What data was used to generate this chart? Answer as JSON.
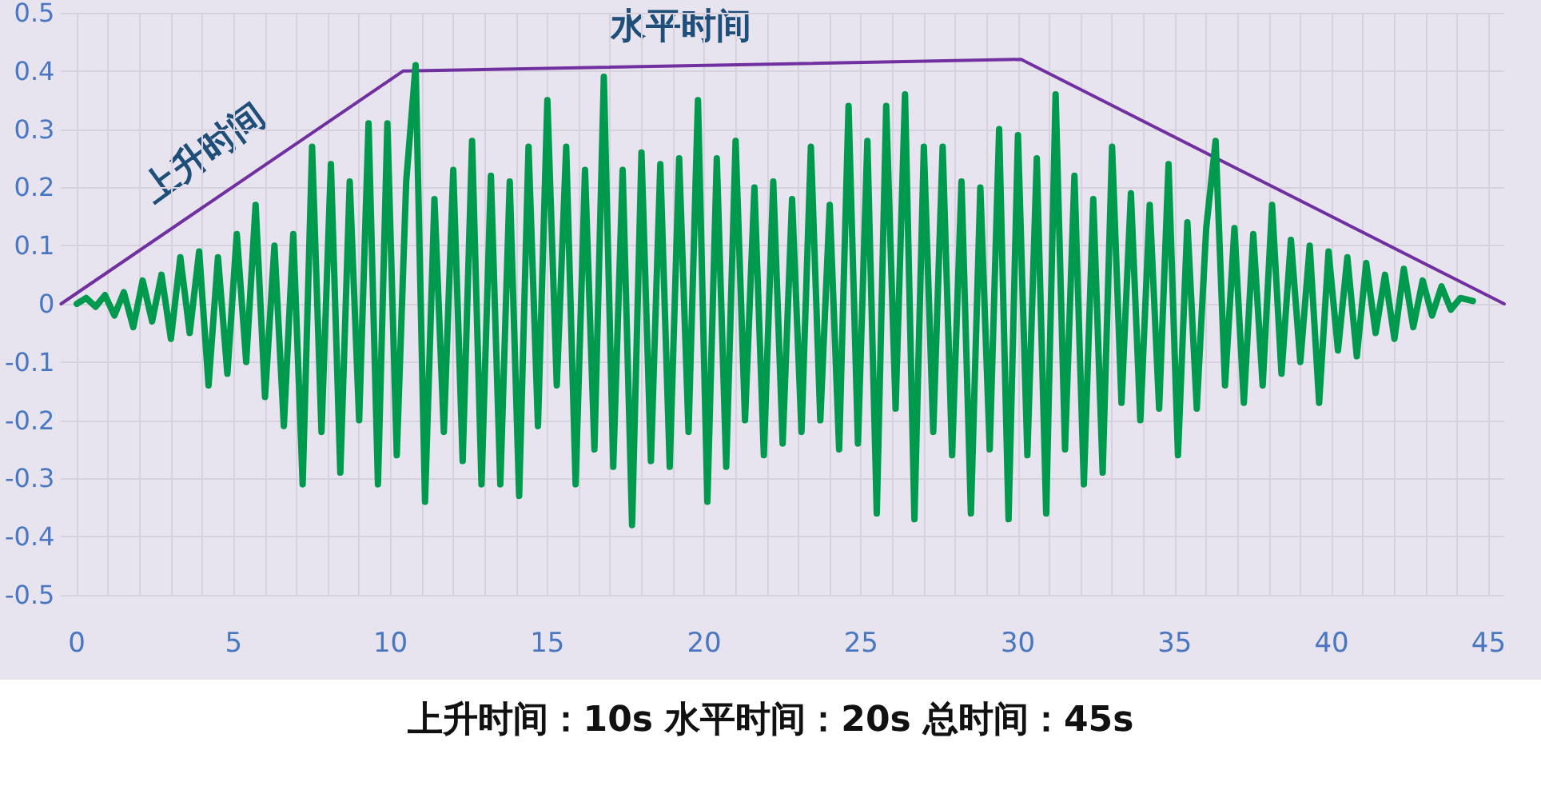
{
  "chart_data": {
    "type": "line",
    "annotations": [
      "上升时间",
      "水平时间",
      "上升时间：10s 水平时间：20s 总时间：45s"
    ],
    "xlim": [
      -0.5,
      45.5
    ],
    "xticks": [
      0,
      {
        "value": 1,
        "label": null
      },
      {
        "value": 2,
        "label": null
      },
      {
        "value": 3,
        "label": null
      },
      {
        "value": 4,
        "label": null
      },
      5,
      {
        "value": 6,
        "label": null
      },
      {
        "value": 7,
        "label": null
      },
      {
        "value": 8,
        "label": null
      },
      {
        "value": 9,
        "label": null
      },
      10,
      {
        "value": 11,
        "label": null
      },
      {
        "value": 12,
        "label": null
      },
      {
        "value": 13,
        "label": null
      },
      {
        "value": 14,
        "label": null
      },
      15,
      {
        "value": 16,
        "label": null
      },
      {
        "value": 17,
        "label": null
      },
      {
        "value": 18,
        "label": null
      },
      {
        "value": 19,
        "label": null
      },
      20,
      {
        "value": 21,
        "label": null
      },
      {
        "value": 22,
        "label": null
      },
      {
        "value": 23,
        "label": null
      },
      {
        "value": 24,
        "label": null
      },
      25,
      {
        "value": 26,
        "label": null
      },
      {
        "value": 27,
        "label": null
      },
      {
        "value": 28,
        "label": null
      },
      {
        "value": 29,
        "label": null
      },
      30,
      {
        "value": 31,
        "label": null
      },
      {
        "value": 32,
        "label": null
      },
      {
        "value": 33,
        "label": null
      },
      {
        "value": 34,
        "label": null
      },
      35,
      {
        "value": 36,
        "label": null
      },
      {
        "value": 37,
        "label": null
      },
      {
        "value": 38,
        "label": null
      },
      {
        "value": 39,
        "label": null
      },
      40,
      {
        "value": 41,
        "label": null
      },
      {
        "value": 42,
        "label": null
      },
      {
        "value": 43,
        "label": null
      },
      {
        "value": 44,
        "label": null
      },
      45
    ],
    "ylim": [
      -0.5,
      0.5
    ],
    "yticks": [
      -0.5,
      -0.4,
      -0.3,
      -0.2,
      -0.1,
      0,
      0.1,
      0.2,
      0.3,
      0.4,
      0.5
    ],
    "grid": true,
    "marker": "none",
    "line_style": "solid",
    "series": [
      {
        "color": "#009a4e",
        "x": [
          0,
          0.3,
          0.6,
          0.9,
          1.2,
          1.5,
          1.8,
          2.1,
          2.4,
          2.7,
          3.0,
          3.3,
          3.6,
          3.9,
          4.2,
          4.5,
          4.8,
          5.1,
          5.4,
          5.7,
          6.0,
          6.3,
          6.6,
          6.9,
          7.2,
          7.5,
          7.8,
          8.1,
          8.4,
          8.7,
          9.0,
          9.3,
          9.6,
          9.9,
          10.2,
          10.5,
          10.8,
          11.1,
          11.4,
          11.7,
          12.0,
          12.3,
          12.6,
          12.9,
          13.2,
          13.5,
          13.8,
          14.1,
          14.4,
          14.7,
          15.0,
          15.3,
          15.6,
          15.9,
          16.2,
          16.5,
          16.8,
          17.1,
          17.4,
          17.7,
          18.0,
          18.3,
          18.6,
          18.9,
          19.2,
          19.5,
          19.8,
          20.1,
          20.4,
          20.7,
          21.0,
          21.3,
          21.6,
          21.9,
          22.2,
          22.5,
          22.8,
          23.1,
          23.4,
          23.7,
          24.0,
          24.3,
          24.6,
          24.9,
          25.2,
          25.5,
          25.8,
          26.1,
          26.4,
          26.7,
          27.0,
          27.3,
          27.6,
          27.9,
          28.2,
          28.5,
          28.8,
          29.1,
          29.4,
          29.7,
          30.0,
          30.3,
          30.6,
          30.9,
          31.2,
          31.5,
          31.8,
          32.1,
          32.4,
          32.7,
          33.0,
          33.3,
          33.6,
          33.9,
          34.2,
          34.5,
          34.8,
          35.1,
          35.4,
          35.7,
          36.0,
          36.3,
          36.6,
          36.9,
          37.2,
          37.5,
          37.8,
          38.1,
          38.4,
          38.7,
          39.0,
          39.3,
          39.6,
          39.9,
          40.2,
          40.5,
          40.8,
          41.1,
          41.4,
          41.7,
          42.0,
          42.3,
          42.6,
          42.9,
          43.2,
          43.5,
          43.8,
          44.1,
          44.5
        ],
        "values": [
          0,
          0.01,
          -0.005,
          0.015,
          -0.02,
          0.02,
          -0.04,
          0.04,
          -0.03,
          0.05,
          -0.06,
          0.08,
          -0.05,
          0.09,
          -0.14,
          0.08,
          -0.12,
          0.12,
          -0.1,
          0.17,
          -0.16,
          0.1,
          -0.21,
          0.12,
          -0.31,
          0.27,
          -0.22,
          0.24,
          -0.29,
          0.21,
          -0.2,
          0.31,
          -0.31,
          0.31,
          -0.26,
          0.21,
          0.41,
          -0.34,
          0.18,
          -0.22,
          0.23,
          -0.27,
          0.28,
          -0.31,
          0.22,
          -0.31,
          0.21,
          -0.33,
          0.27,
          -0.21,
          0.35,
          -0.14,
          0.27,
          -0.31,
          0.23,
          -0.25,
          0.39,
          -0.28,
          0.23,
          -0.38,
          0.26,
          -0.27,
          0.24,
          -0.28,
          0.25,
          -0.22,
          0.35,
          -0.34,
          0.25,
          -0.28,
          0.28,
          -0.2,
          0.2,
          -0.26,
          0.21,
          -0.24,
          0.18,
          -0.22,
          0.27,
          -0.2,
          0.17,
          -0.25,
          0.34,
          -0.24,
          0.28,
          -0.36,
          0.34,
          -0.18,
          0.36,
          -0.37,
          0.27,
          -0.22,
          0.27,
          -0.26,
          0.21,
          -0.36,
          0.2,
          -0.25,
          0.3,
          -0.37,
          0.29,
          -0.26,
          0.25,
          -0.36,
          0.36,
          -0.25,
          0.22,
          -0.31,
          0.18,
          -0.29,
          0.27,
          -0.17,
          0.19,
          -0.2,
          0.17,
          -0.18,
          0.24,
          -0.26,
          0.14,
          -0.18,
          0.13,
          0.28,
          -0.14,
          0.13,
          -0.17,
          0.12,
          -0.14,
          0.17,
          -0.12,
          0.11,
          -0.1,
          0.1,
          -0.17,
          0.09,
          -0.08,
          0.08,
          -0.09,
          0.07,
          -0.05,
          0.05,
          -0.06,
          0.06,
          -0.04,
          0.04,
          -0.02,
          0.03,
          -0.01,
          0.01,
          0.005
        ]
      },
      {
        "color": "#7030a0",
        "x": [
          -0.5,
          10.4,
          30.1,
          45.5
        ],
        "values": [
          0,
          0.4,
          0.42,
          0
        ]
      }
    ]
  }
}
